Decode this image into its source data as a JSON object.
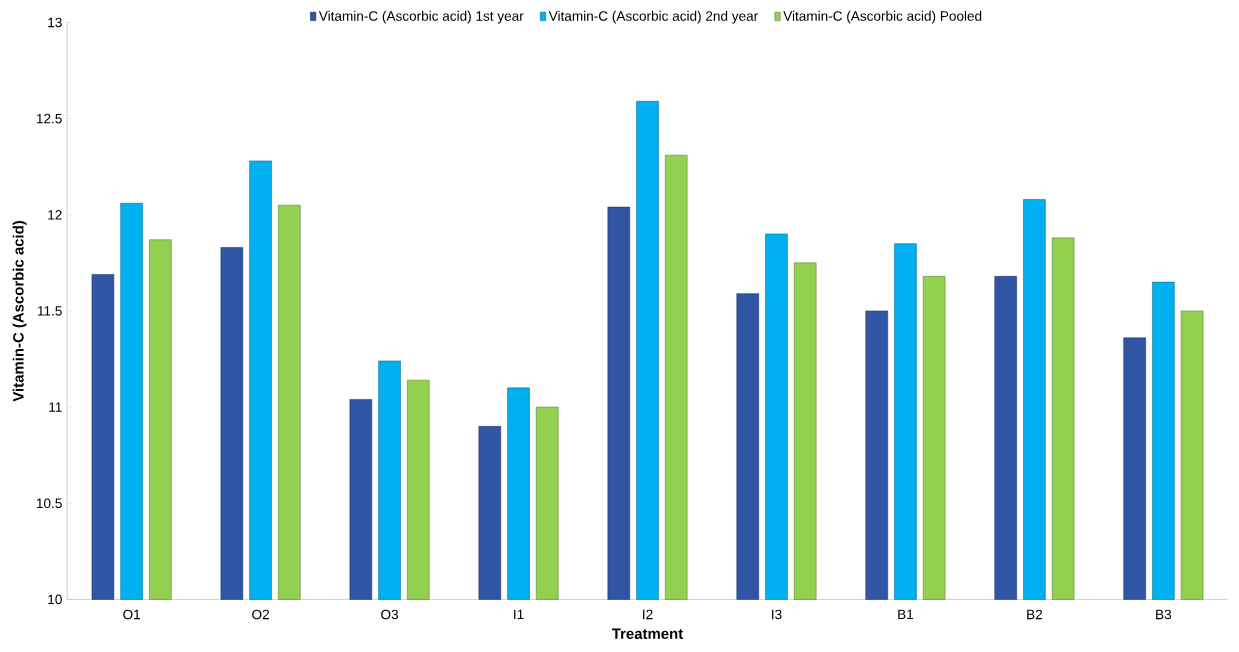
{
  "chart_data": {
    "type": "bar",
    "xlabel": "Treatment",
    "ylabel": "Vitamin-C (Ascorbic acid)",
    "categories": [
      "O1",
      "O2",
      "O3",
      "I1",
      "I2",
      "I3",
      "B1",
      "B2",
      "B3"
    ],
    "series": [
      {
        "name": "Vitamin-C (Ascorbic acid) 1st year",
        "color": "#2f55a4",
        "values": [
          11.69,
          11.83,
          11.04,
          10.9,
          12.04,
          11.59,
          11.5,
          11.68,
          11.36
        ]
      },
      {
        "name": "Vitamin-C (Ascorbic acid) 2nd year",
        "color": "#00b0f0",
        "values": [
          12.06,
          12.28,
          11.24,
          11.1,
          12.59,
          11.9,
          11.85,
          12.08,
          11.65
        ]
      },
      {
        "name": "Vitamin-C (Ascorbic acid) Pooled",
        "color": "#92d050",
        "values": [
          11.87,
          12.05,
          11.14,
          11.0,
          12.31,
          11.75,
          11.68,
          11.88,
          11.5
        ]
      }
    ],
    "ylim": [
      10,
      13
    ],
    "yticks": [
      10,
      10.5,
      11,
      11.5,
      12,
      12.5,
      13
    ],
    "grid": false,
    "legend": "top"
  }
}
